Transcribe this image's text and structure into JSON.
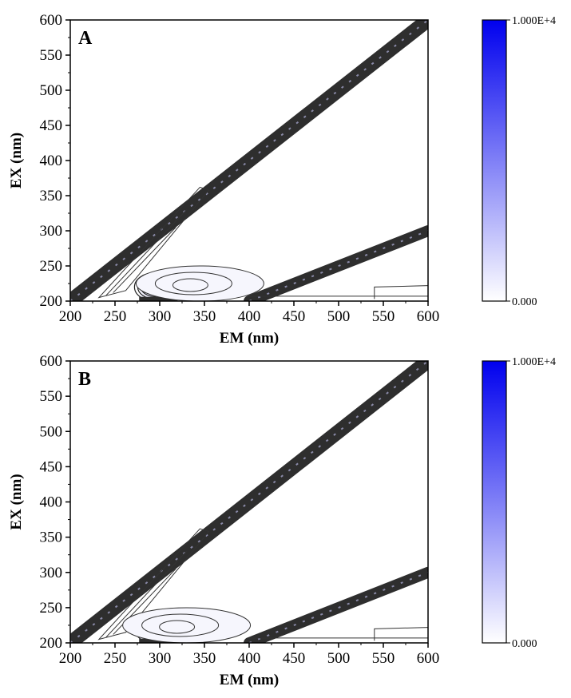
{
  "chart_data": [
    {
      "type": "heatmap",
      "panel_label": "A",
      "xlabel": "EM (nm)",
      "ylabel": "EX (nm)",
      "xlim": [
        200,
        600
      ],
      "ylim": [
        200,
        600
      ],
      "xticks": [
        "200",
        "250",
        "300",
        "350",
        "400",
        "450",
        "500",
        "550",
        "600"
      ],
      "yticks": [
        "200",
        "250",
        "300",
        "350",
        "400",
        "450",
        "500",
        "550",
        "600"
      ],
      "colorbar": {
        "min_label": "0.000",
        "max_label": "1.000E+4",
        "min": 0,
        "max": 10000,
        "low_color": "#ffffff",
        "high_color": "#0000ee"
      },
      "features": [
        {
          "name": "rayleigh-first-order",
          "em_start": 200,
          "em_end": 600,
          "ex_start": 200,
          "ex_end": 600
        },
        {
          "name": "rayleigh-second-order",
          "em_start": 400,
          "em_end": 600,
          "ex_start": 200,
          "ex_end": 300
        },
        {
          "name": "tryptophan-like-peak",
          "em": 295,
          "ex": 220
        },
        {
          "name": "tyrosine-like-shoulder",
          "em": 345,
          "ex": 225
        }
      ]
    },
    {
      "type": "heatmap",
      "panel_label": "B",
      "xlabel": "EM (nm)",
      "ylabel": "EX (nm)",
      "xlim": [
        200,
        600
      ],
      "ylim": [
        200,
        600
      ],
      "xticks": [
        "200",
        "250",
        "300",
        "350",
        "400",
        "450",
        "500",
        "550",
        "600"
      ],
      "yticks": [
        "200",
        "250",
        "300",
        "350",
        "400",
        "450",
        "500",
        "550",
        "600"
      ],
      "colorbar": {
        "min_label": "0.000",
        "max_label": "1.000E+4",
        "min": 0,
        "max": 10000,
        "low_color": "#ffffff",
        "high_color": "#0000ee"
      },
      "features": [
        {
          "name": "rayleigh-first-order",
          "em_start": 200,
          "em_end": 600,
          "ex_start": 200,
          "ex_end": 600
        },
        {
          "name": "rayleigh-second-order",
          "em_start": 400,
          "em_end": 600,
          "ex_start": 200,
          "ex_end": 300
        },
        {
          "name": "tryptophan-like-peak",
          "em": 295,
          "ex": 220
        },
        {
          "name": "tyrosine-like-shoulder",
          "em": 330,
          "ex": 225
        }
      ]
    }
  ]
}
